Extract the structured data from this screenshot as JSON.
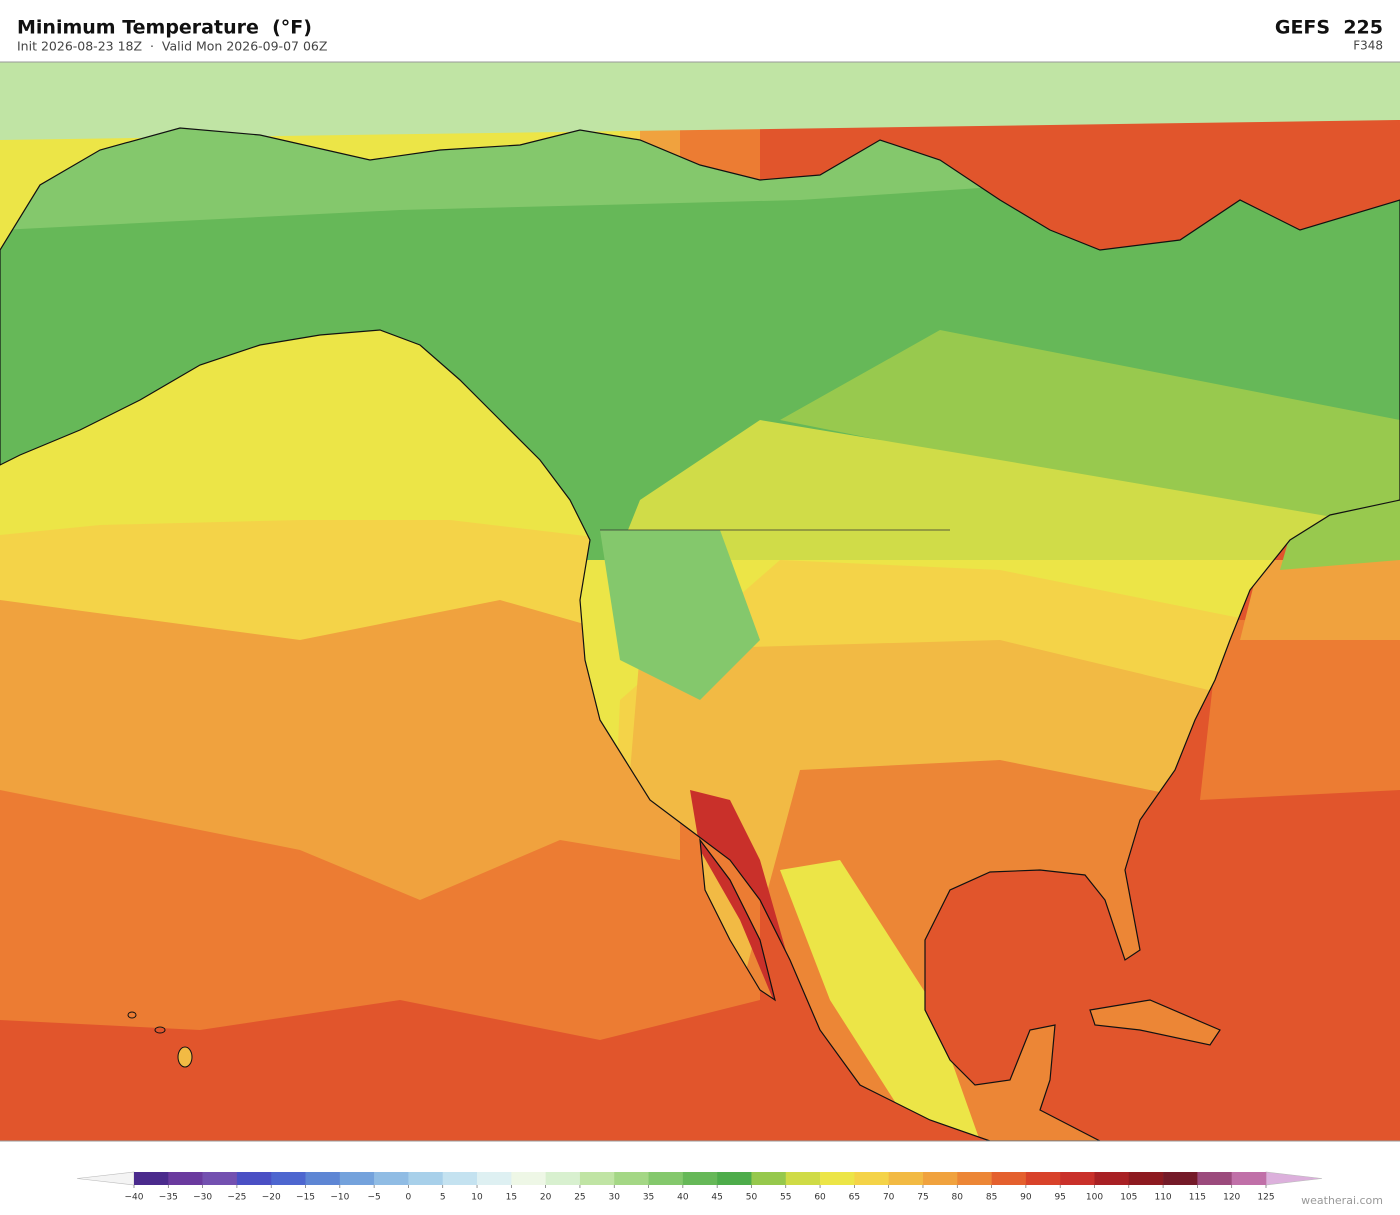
{
  "header": {
    "title": "Minimum Temperature  (°F)",
    "subtitle": "Init 2026-08-23 18Z  ·  Valid Mon 2026-09-07 06Z",
    "model": "GEFS  225",
    "forecast_hour": "F348"
  },
  "colorbar": {
    "ticks": [
      {
        "value": -40,
        "label": "−40"
      },
      {
        "value": -35,
        "label": "−35"
      },
      {
        "value": -30,
        "label": "−30"
      },
      {
        "value": -25,
        "label": "−25"
      },
      {
        "value": -20,
        "label": "−20"
      },
      {
        "value": -15,
        "label": "−15"
      },
      {
        "value": -10,
        "label": "−10"
      },
      {
        "value": -5,
        "label": "−5"
      },
      0,
      5,
      10,
      15,
      20,
      25,
      30,
      35,
      40,
      45,
      50,
      55,
      60,
      65,
      70,
      75,
      80,
      85,
      90,
      95,
      100,
      105,
      110,
      115,
      120,
      125
    ],
    "colors": [
      "#4a2a8c",
      "#6a3a9e",
      "#7350b0",
      "#4a4fc4",
      "#4d66cf",
      "#5e86d4",
      "#74a2dc",
      "#90bce4",
      "#a8d0ea",
      "#c4e2f0",
      "#def0f2",
      "#eef7e6",
      "#d8f0cf",
      "#c0e4a4",
      "#a4d785",
      "#84c86c",
      "#66b858",
      "#4dac4a",
      "#96c84c",
      "#cfdb46",
      "#ece547",
      "#f4d348",
      "#f2ba44",
      "#f0a23e",
      "#ec8636",
      "#e4602e",
      "#d8422a",
      "#c9302a",
      "#a82024",
      "#8d1a20",
      "#741a28",
      "#9b4a7c",
      "#c070a8",
      "#d9a0d0"
    ],
    "under_color": "#f4f4f4",
    "over_color": "#dcb0dc"
  },
  "footer": {
    "credit": "weatherai.com"
  }
}
